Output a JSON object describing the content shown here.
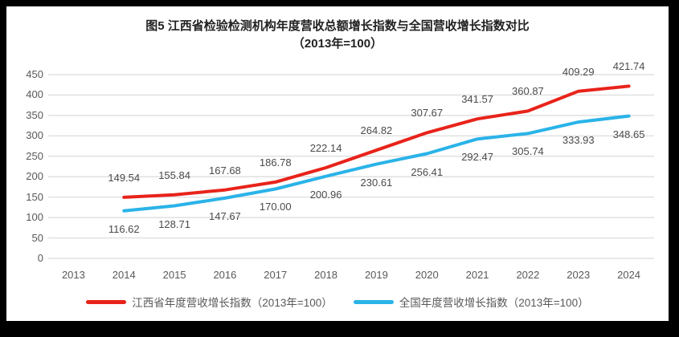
{
  "styles": {
    "frame_background": "#000000",
    "panel_background": "#ffffff",
    "grid_color": "#dadada",
    "tick_text_color": "#595959",
    "data_label_text_color": "#4a4a4a",
    "title_text_color": "#222222"
  },
  "chart_data": {
    "type": "line",
    "title": "图5  江西省检验检测机构年度营收总额增长指数与全国营收增长指数对比",
    "subtitle": "（2013年=100）",
    "categories": [
      "2013",
      "2014",
      "2015",
      "2016",
      "2017",
      "2018",
      "2019",
      "2020",
      "2021",
      "2022",
      "2023",
      "2024"
    ],
    "xlabel": "",
    "ylabel": "",
    "ylim": [
      0,
      450
    ],
    "ytick_step": 50,
    "grid": true,
    "legend_position": "bottom",
    "series": [
      {
        "name": "江西省年度营收增长指数（2013年=100）",
        "color": "#e8231a",
        "start_category": "2014",
        "label_position": "above",
        "values": [
          149.54,
          155.84,
          167.68,
          186.78,
          222.14,
          264.82,
          307.67,
          341.57,
          360.87,
          409.29,
          421.74
        ]
      },
      {
        "name": "全国年度营收增长指数（2013年=100）",
        "color": "#2ab3e8",
        "start_category": "2014",
        "label_position": "below",
        "values": [
          116.62,
          128.71,
          147.67,
          170.0,
          200.96,
          230.61,
          256.41,
          292.47,
          305.74,
          333.93,
          348.65
        ]
      }
    ]
  }
}
